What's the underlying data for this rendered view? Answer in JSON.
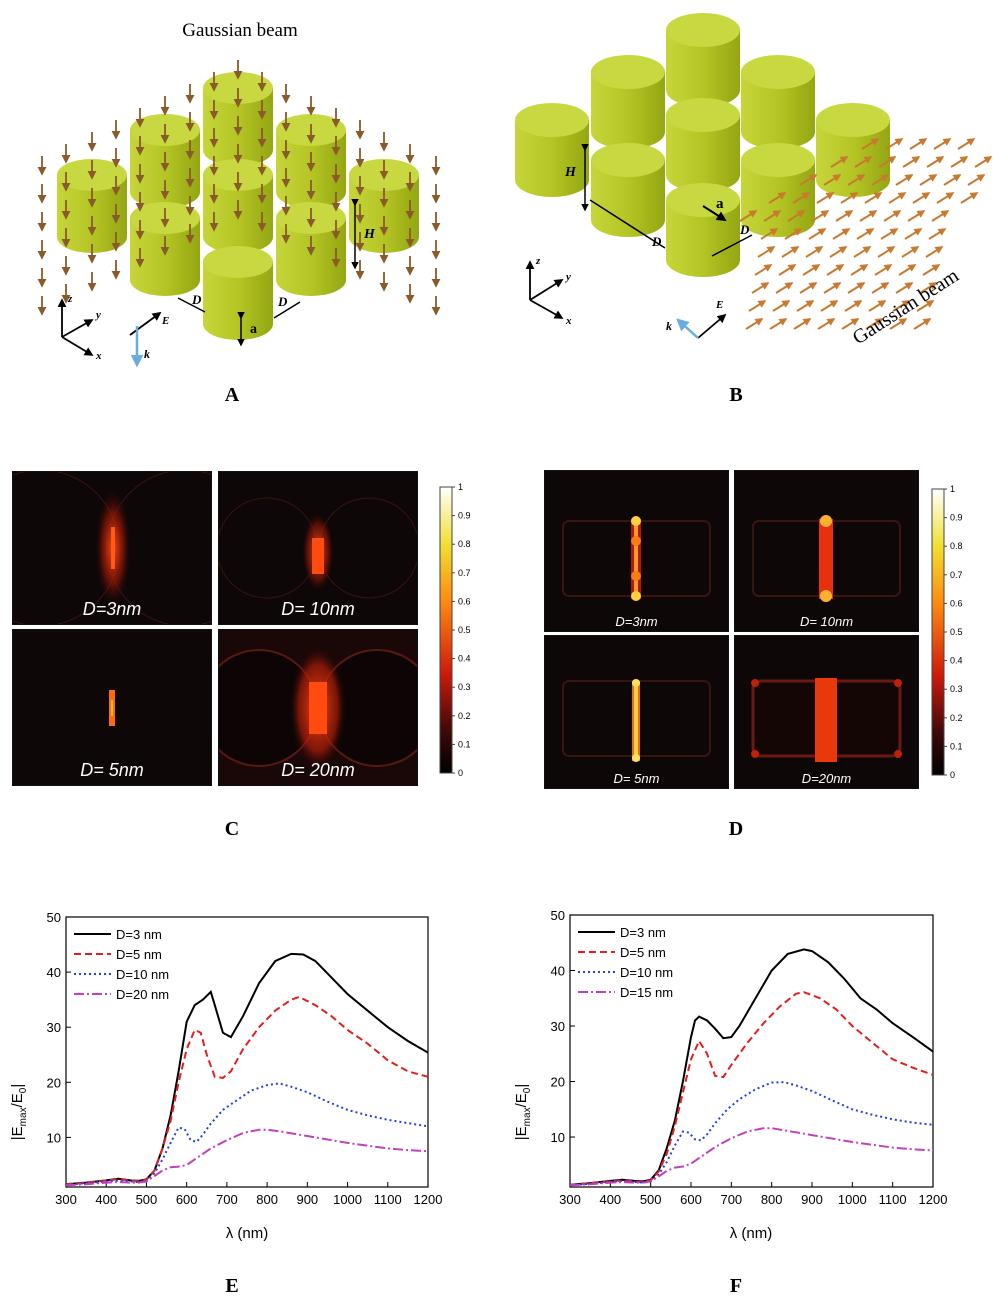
{
  "panel_A": {
    "letter": "A",
    "beam_title": "Gaussian beam",
    "labels": {
      "H": "H",
      "D1": "D",
      "D2": "D",
      "a": "a",
      "E": "E",
      "k": "k",
      "x": "x",
      "y": "y",
      "z": "z"
    }
  },
  "panel_B": {
    "letter": "B",
    "beam_title": "Gaussian beam",
    "labels": {
      "H": "H",
      "D1": "D",
      "D2": "D",
      "a": "a",
      "E": "E",
      "k": "k",
      "x": "x",
      "y": "y",
      "z": "z"
    }
  },
  "panel_C": {
    "letter": "C",
    "maps": [
      "D=3nm",
      "D= 10nm",
      "D= 5nm",
      "D= 20nm"
    ],
    "colorbar_ticks": [
      "1",
      "0.9",
      "0.8",
      "0.7",
      "0.6",
      "0.5",
      "0.4",
      "0.3",
      "0.2",
      "0.1",
      "0"
    ]
  },
  "panel_D": {
    "letter": "D",
    "maps": [
      "D=3nm",
      "D= 10nm",
      "D= 5nm",
      "D=20nm"
    ],
    "colorbar_ticks": [
      "1",
      "0.9",
      "0.8",
      "0.7",
      "0.6",
      "0.5",
      "0.4",
      "0.3",
      "0.2",
      "0.1",
      "0"
    ]
  },
  "colors": {
    "cylinder_top": "#c8d840",
    "cylinder_side": "#a9bb1c",
    "arrow": "#8a5a2a",
    "k_arrow": "#6aaee0"
  },
  "chart_data": [
    {
      "type": "line",
      "panel": "E",
      "xlabel": "λ (nm)",
      "ylabel_main": "|E",
      "ylabel_sub1": "max",
      "ylabel_mid": "/E",
      "ylabel_sub2": "0",
      "ylabel_end": "|",
      "xlim": [
        300,
        1200
      ],
      "ylim": [
        1,
        50
      ],
      "x_ticks": [
        300,
        400,
        500,
        600,
        700,
        800,
        900,
        1000,
        1100,
        1200
      ],
      "y_ticks": [
        10,
        20,
        30,
        40,
        50
      ],
      "legend": "top-left",
      "series": [
        {
          "name": "D=3 nm",
          "color": "#000000",
          "dash": "",
          "x": [
            300,
            350,
            400,
            430,
            460,
            480,
            500,
            520,
            540,
            560,
            580,
            600,
            620,
            640,
            660,
            670,
            690,
            710,
            740,
            780,
            820,
            860,
            890,
            920,
            960,
            1000,
            1050,
            1100,
            1150,
            1200
          ],
          "y": [
            1.5,
            1.8,
            2.2,
            2.5,
            2.2,
            2.1,
            2.4,
            4,
            8,
            14,
            22,
            31,
            34,
            35,
            36.4,
            34,
            29,
            28.2,
            32,
            38,
            42,
            43.3,
            43.2,
            42,
            39,
            36,
            33,
            30,
            27.5,
            25.4
          ]
        },
        {
          "name": "D=5 nm",
          "color": "#e02020",
          "dash": "7,4",
          "x": [
            300,
            350,
            400,
            430,
            460,
            480,
            500,
            520,
            540,
            560,
            580,
            600,
            620,
            635,
            650,
            670,
            690,
            710,
            740,
            780,
            820,
            860,
            880,
            920,
            960,
            1000,
            1050,
            1100,
            1150,
            1200
          ],
          "y": [
            1.5,
            1.8,
            2.2,
            2.4,
            2.2,
            2.1,
            2.3,
            4,
            8,
            13,
            20,
            26,
            29.5,
            29,
            25,
            21,
            20.8,
            22,
            26,
            30,
            33,
            35,
            35.5,
            34,
            32,
            29.5,
            27,
            24,
            22,
            21
          ]
        },
        {
          "name": "D=10 nm",
          "color": "#2040e0",
          "dash": "2,3",
          "x": [
            300,
            350,
            400,
            430,
            460,
            480,
            500,
            520,
            540,
            560,
            580,
            595,
            610,
            625,
            640,
            660,
            690,
            720,
            760,
            800,
            830,
            860,
            900,
            950,
            1000,
            1050,
            1100,
            1150,
            1200
          ],
          "y": [
            1.4,
            1.7,
            2.0,
            2.2,
            2.0,
            1.9,
            2.1,
            3.5,
            6,
            9,
            11.8,
            11.5,
            9.5,
            9.2,
            10.5,
            12.5,
            15,
            16.5,
            18.5,
            19.5,
            19.8,
            19.2,
            18.2,
            16.5,
            15,
            14,
            13.2,
            12.6,
            12
          ]
        },
        {
          "name": "D=20 nm",
          "color": "#c040c0",
          "dash": "10,3,2,3",
          "x": [
            300,
            350,
            400,
            430,
            460,
            480,
            500,
            520,
            540,
            560,
            580,
            600,
            620,
            640,
            660,
            700,
            740,
            780,
            800,
            840,
            880,
            920,
            960,
            1000,
            1050,
            1100,
            1150,
            1200
          ],
          "y": [
            1.3,
            1.5,
            1.8,
            1.9,
            1.8,
            1.8,
            2.0,
            3,
            4,
            4.6,
            4.7,
            5,
            6,
            7,
            8,
            9.5,
            10.8,
            11.4,
            11.4,
            11,
            10.5,
            10,
            9.5,
            9,
            8.5,
            8,
            7.7,
            7.5
          ]
        }
      ]
    },
    {
      "type": "line",
      "panel": "F",
      "xlabel": "λ (nm)",
      "ylabel_main": "|E",
      "ylabel_sub1": "max",
      "ylabel_mid": "/E",
      "ylabel_sub2": "0",
      "ylabel_end": "|",
      "xlim": [
        300,
        1200
      ],
      "ylim": [
        1,
        50
      ],
      "x_ticks": [
        300,
        400,
        500,
        600,
        700,
        800,
        900,
        1000,
        1100,
        1200
      ],
      "y_ticks": [
        10,
        20,
        30,
        40,
        50
      ],
      "legend": "top-left",
      "series": [
        {
          "name": "D=3 nm",
          "color": "#000000",
          "dash": "",
          "x": [
            300,
            350,
            400,
            430,
            460,
            480,
            500,
            520,
            540,
            560,
            580,
            600,
            610,
            620,
            640,
            660,
            680,
            700,
            720,
            760,
            800,
            840,
            880,
            900,
            940,
            980,
            1020,
            1060,
            1100,
            1150,
            1200
          ],
          "y": [
            1.4,
            1.7,
            2.1,
            2.3,
            2.1,
            2.0,
            2.3,
            4,
            8,
            13,
            20,
            28,
            31,
            31.7,
            31,
            29.5,
            27.8,
            28,
            30,
            35,
            40,
            43,
            43.8,
            43.5,
            41.5,
            38.5,
            35,
            33,
            30.5,
            28,
            25.4
          ]
        },
        {
          "name": "D=5 nm",
          "color": "#e02020",
          "dash": "7,4",
          "x": [
            300,
            350,
            400,
            430,
            460,
            480,
            500,
            520,
            540,
            560,
            580,
            600,
            620,
            640,
            660,
            680,
            700,
            740,
            780,
            820,
            860,
            880,
            920,
            960,
            1000,
            1050,
            1100,
            1150,
            1200
          ],
          "y": [
            1.4,
            1.7,
            2.0,
            2.2,
            2.0,
            1.9,
            2.2,
            3.8,
            7,
            12,
            18,
            24,
            27.3,
            25,
            21,
            20.8,
            23,
            27,
            30.5,
            33.5,
            35.8,
            36.1,
            35,
            33,
            30,
            27,
            24,
            22.5,
            21.2
          ]
        },
        {
          "name": "D=10 nm",
          "color": "#2040e0",
          "dash": "2,3",
          "x": [
            300,
            350,
            400,
            430,
            460,
            480,
            500,
            520,
            540,
            560,
            580,
            595,
            610,
            625,
            640,
            660,
            690,
            720,
            760,
            800,
            830,
            860,
            900,
            950,
            1000,
            1050,
            1100,
            1150,
            1200
          ],
          "y": [
            1.3,
            1.6,
            1.9,
            2.1,
            1.9,
            1.8,
            2.0,
            3.3,
            5.5,
            8.5,
            11,
            10.8,
            9.6,
            9.4,
            10.5,
            12.5,
            15,
            16.8,
            18.6,
            19.8,
            19.9,
            19.3,
            18.3,
            16.6,
            15,
            14,
            13.2,
            12.6,
            12.2
          ]
        },
        {
          "name": "D=15 nm",
          "color": "#c040c0",
          "dash": "10,3,2,3",
          "x": [
            300,
            350,
            400,
            430,
            460,
            480,
            500,
            520,
            540,
            560,
            580,
            600,
            620,
            640,
            660,
            700,
            740,
            780,
            800,
            840,
            880,
            920,
            960,
            1000,
            1050,
            1100,
            1150,
            1200
          ],
          "y": [
            1.3,
            1.5,
            1.8,
            1.9,
            1.8,
            1.8,
            2.0,
            2.9,
            3.9,
            4.5,
            4.7,
            5.2,
            6.2,
            7.2,
            8.2,
            9.8,
            11,
            11.6,
            11.6,
            11.1,
            10.6,
            10.1,
            9.6,
            9.1,
            8.6,
            8.1,
            7.8,
            7.6
          ]
        }
      ]
    }
  ]
}
